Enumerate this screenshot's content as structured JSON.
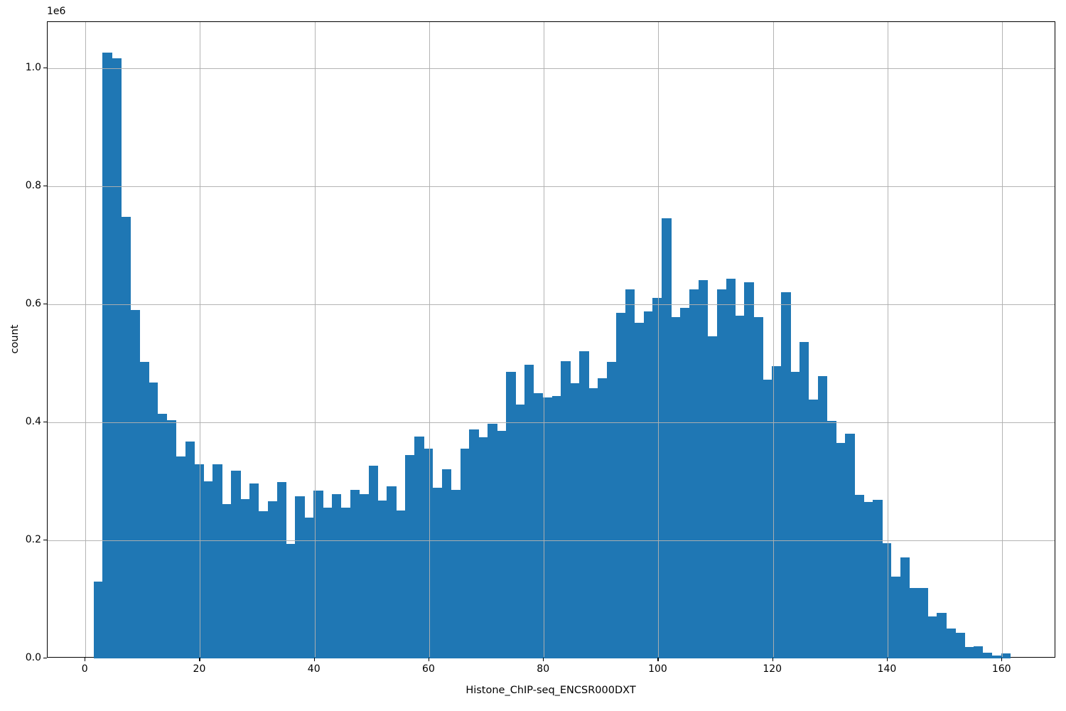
{
  "chart_data": {
    "type": "bar",
    "subtype": "histogram",
    "xlabel": "Histone_ChIP-seq_ENCSR000DXT",
    "ylabel": "count",
    "offset_text": "1e6",
    "bin_start": 1.4,
    "bin_width": 1.6,
    "values": [
      130000,
      1027000,
      1017000,
      748000,
      590000,
      502000,
      468000,
      415000,
      404000,
      342000,
      368000,
      329000,
      300000,
      329000,
      262000,
      318000,
      270000,
      296000,
      250000,
      266000,
      299000,
      194000,
      275000,
      239000,
      284000,
      255000,
      278000,
      256000,
      285000,
      278000,
      326000,
      267000,
      292000,
      251000,
      344000,
      376000,
      356000,
      289000,
      321000,
      285000,
      355000,
      388000,
      375000,
      398000,
      385000,
      486000,
      430000,
      498000,
      449000,
      442000,
      445000,
      504000,
      466000,
      521000,
      458000,
      475000,
      502000,
      586000,
      625000,
      569000,
      588000,
      611000,
      746000,
      578000,
      594000,
      625000,
      641000,
      546000,
      625000,
      643000,
      581000,
      637000,
      578000,
      472000,
      495000,
      620000,
      486000,
      536000,
      438000,
      478000,
      402000,
      365000,
      381000,
      277000,
      265000,
      269000,
      195000,
      139000,
      171000,
      119000,
      119000,
      71000,
      77000,
      51000,
      43000,
      19000,
      21000,
      10000,
      5000,
      8000
    ],
    "x_tick_values": [
      0,
      20,
      40,
      60,
      80,
      100,
      120,
      140,
      160
    ],
    "x_tick_labels": [
      "0",
      "20",
      "40",
      "60",
      "80",
      "100",
      "120",
      "140",
      "160"
    ],
    "y_tick_values": [
      0,
      200000,
      400000,
      600000,
      800000,
      1000000
    ],
    "y_tick_labels": [
      "0.0",
      "0.2",
      "0.4",
      "0.6",
      "0.8",
      "1.0"
    ],
    "xlim": [
      -6.6,
      169.4
    ],
    "ylim": [
      0,
      1078350
    ],
    "grid": true,
    "legend": false,
    "bar_color": "#1f77b4",
    "grid_color": "#b0b0b0",
    "background": "#ffffff"
  }
}
